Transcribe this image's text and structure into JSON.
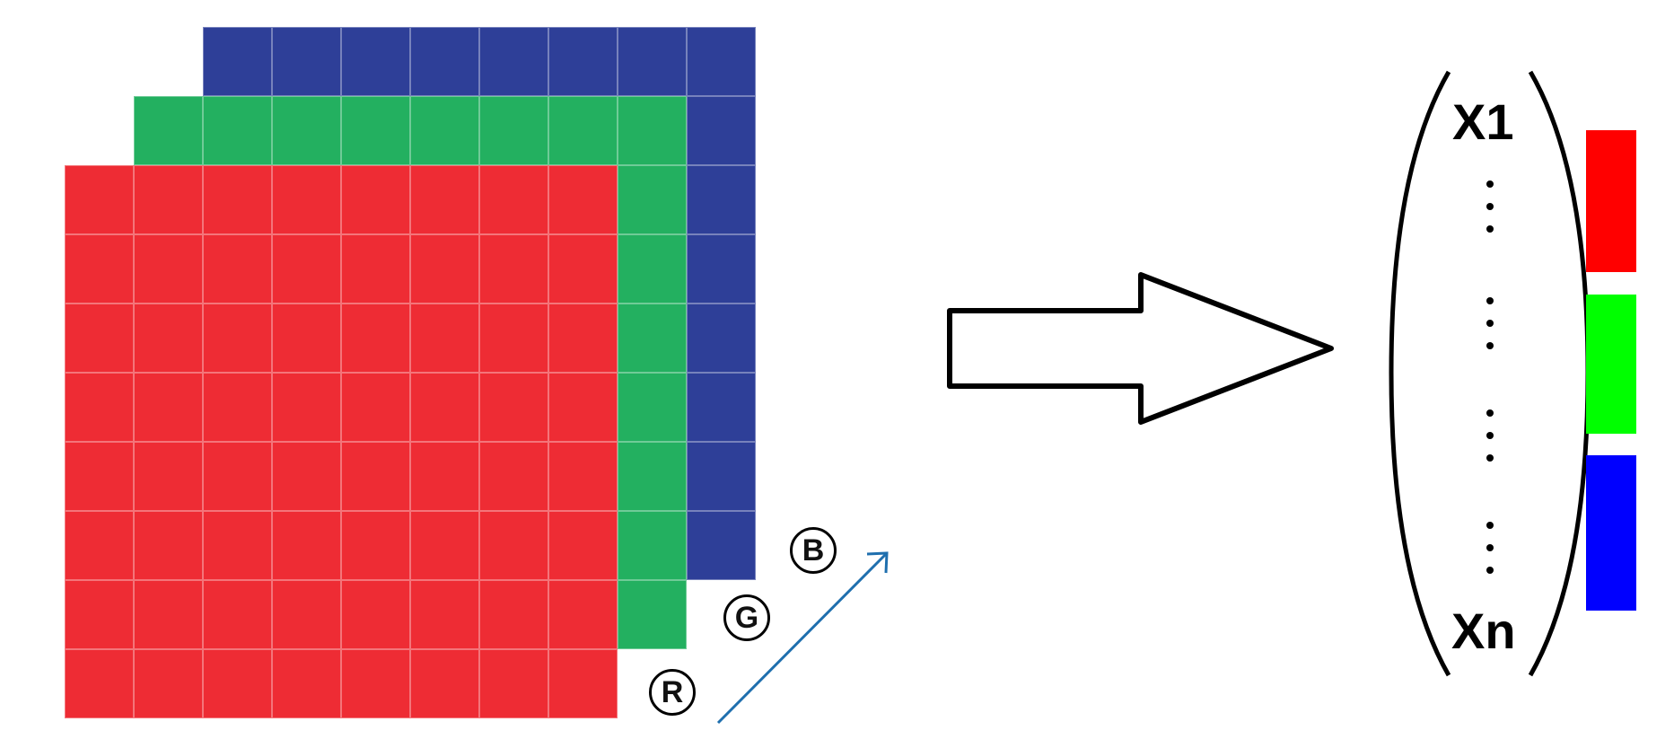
{
  "colors": {
    "red_channel": "#ee2c34",
    "green_channel": "#23b060",
    "blue_channel": "#2e3f98",
    "vector_red": "#ff0000",
    "vector_green": "#00ff00",
    "vector_blue": "#0000ff",
    "axis_arrow": "#1f6fae"
  },
  "image_grid": {
    "rows": 8,
    "cols": 8
  },
  "channel_labels": {
    "r": "R",
    "g": "G",
    "b": "B"
  },
  "vector": {
    "first": "X1",
    "last": "Xn"
  },
  "icons": [
    "right-arrow-icon",
    "depth-arrow-icon",
    "parenthesis-icon"
  ]
}
